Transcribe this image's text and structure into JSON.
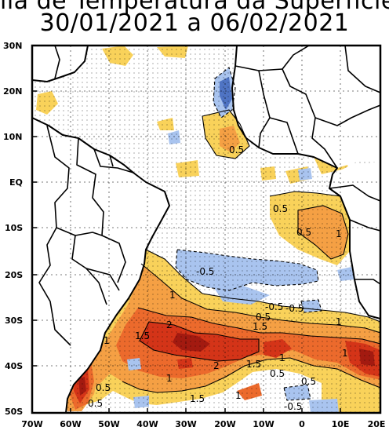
{
  "header": {
    "title_line1": "lia de Temperatura da Superfície",
    "title_line2": "30/01/2021 a 06/02/2021"
  },
  "map": {
    "lat_labels": [
      "30N",
      "20N",
      "10N",
      "EQ",
      "10S",
      "20S",
      "30S",
      "40S",
      "50S"
    ],
    "lon_labels": [
      "70W",
      "60W",
      "50W",
      "40W",
      "30W",
      "20W",
      "10W",
      "0",
      "10E",
      "20E"
    ],
    "contour_labels": [
      "0.5",
      "0.5",
      "0.5",
      "1",
      "-0.5",
      "1",
      "-0.5",
      "-0.5",
      "2",
      "1.5",
      "0.5",
      "1.5",
      "1",
      "1",
      "1",
      "2",
      "1.5",
      "0.5",
      "1",
      "0.5",
      "0.5",
      "-0.5",
      "1",
      "1.5",
      "1",
      "0.5"
    ],
    "colors": {
      "ocean": "#ffffff",
      "pos_0_5": "#f9d25a",
      "pos_1": "#f5a044",
      "pos_1_5": "#ec6a2c",
      "pos_2": "#d43418",
      "pos_2_5": "#a31a10",
      "neg_0_5": "#a9c4ef",
      "neg_1": "#4f74c4",
      "land_line": "#000000"
    }
  }
}
